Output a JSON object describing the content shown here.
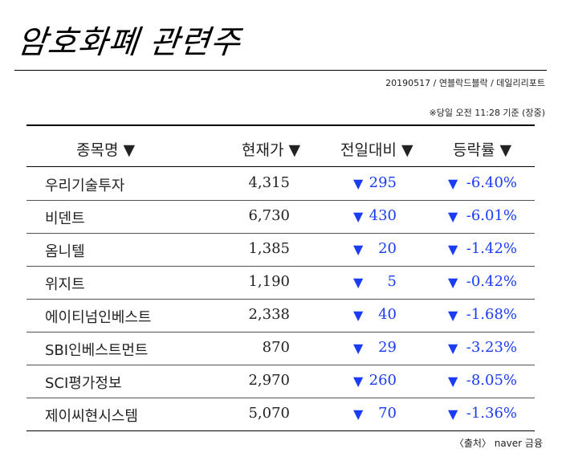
{
  "title": "암호화폐 관련주",
  "source_line": "20190517 / 연블락드블락 / 데일리리포트",
  "note": "※당일 오전 11:28 기준 (장중)",
  "footer": "〈출처〉 naver 금융",
  "colors": {
    "down": "#1a3cf5",
    "text": "#222222",
    "rule": "#000000"
  },
  "chart_data": {
    "type": "table",
    "columns": [
      "종목명 ▼",
      "현재가 ▼",
      "전일대비 ▼",
      "등락률 ▼"
    ],
    "rows": [
      {
        "name": "우리기술투자",
        "price": "4,315",
        "change_arrow": "▼",
        "change": "295",
        "rate_arrow": "▼",
        "rate": "-6.40%"
      },
      {
        "name": "비덴트",
        "price": "6,730",
        "change_arrow": "▼",
        "change": "430",
        "rate_arrow": "▼",
        "rate": "-6.01%"
      },
      {
        "name": "옴니텔",
        "price": "1,385",
        "change_arrow": "▼",
        "change": "20",
        "rate_arrow": "▼",
        "rate": "-1.42%"
      },
      {
        "name": "위지트",
        "price": "1,190",
        "change_arrow": "▼",
        "change": "5",
        "rate_arrow": "▼",
        "rate": "-0.42%"
      },
      {
        "name": "에이티넘인베스트",
        "price": "2,338",
        "change_arrow": "▼",
        "change": "40",
        "rate_arrow": "▼",
        "rate": "-1.68%"
      },
      {
        "name": "SBI인베스트먼트",
        "price": "870",
        "change_arrow": "▼",
        "change": "29",
        "rate_arrow": "▼",
        "rate": "-3.23%"
      },
      {
        "name": "SCI평가정보",
        "price": "2,970",
        "change_arrow": "▼",
        "change": "260",
        "rate_arrow": "▼",
        "rate": "-8.05%"
      },
      {
        "name": "제이씨현시스템",
        "price": "5,070",
        "change_arrow": "▼",
        "change": "70",
        "rate_arrow": "▼",
        "rate": "-1.36%"
      }
    ]
  }
}
